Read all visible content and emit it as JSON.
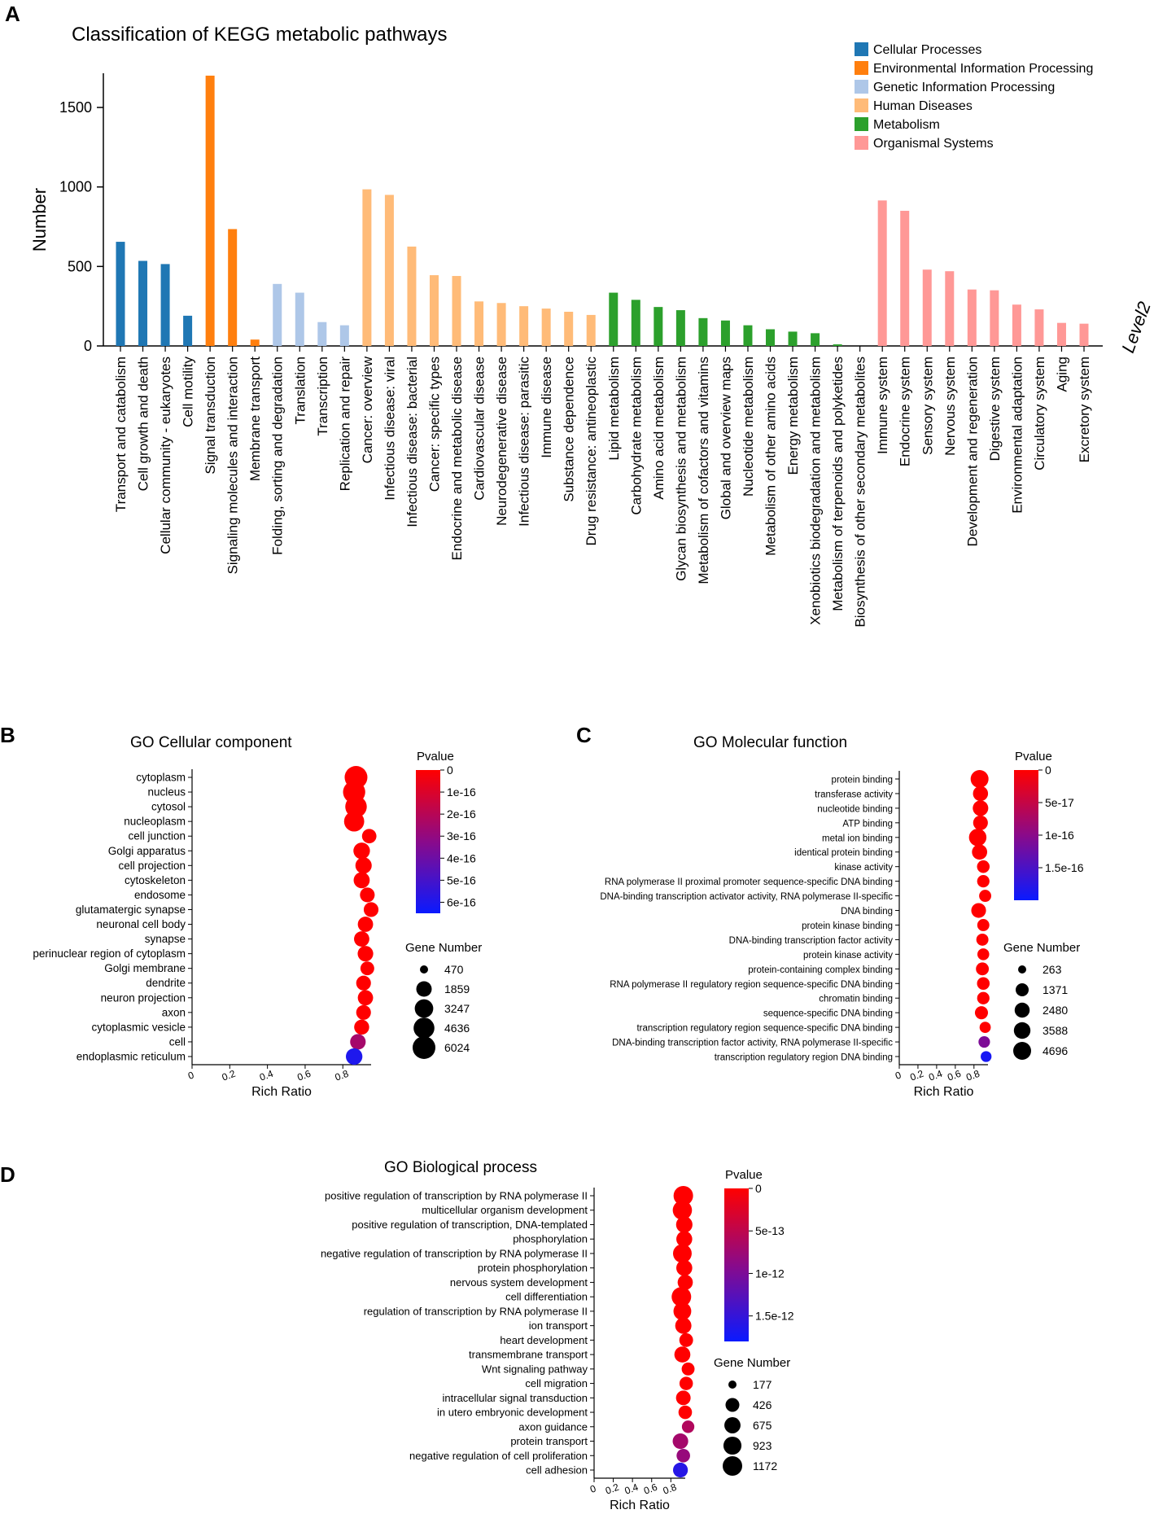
{
  "chart_data": [
    {
      "panel": "A",
      "type": "bar",
      "title": "Classification of KEGG metabolic pathways",
      "xlabel": "Level2",
      "ylabel": "Number",
      "ylim": [
        0,
        1750
      ],
      "yticks": [
        0,
        500,
        1000,
        1500
      ],
      "groups": [
        {
          "name": "Cellular Processes",
          "color": "#1f77b4"
        },
        {
          "name": "Environmental Information Processing",
          "color": "#ff7f0e"
        },
        {
          "name": "Genetic Information Processing",
          "color": "#aec7e8"
        },
        {
          "name": "Human Diseases",
          "color": "#ffbb78"
        },
        {
          "name": "Metabolism",
          "color": "#2ca02c"
        },
        {
          "name": "Organismal Systems",
          "color": "#ff9896"
        }
      ],
      "categories": [
        "Transport and catabolism",
        "Cell growth and death",
        "Cellular community - eukaryotes",
        "Cell motility",
        "Signal transduction",
        "Signaling molecules and interaction",
        "Membrane transport",
        "Folding, sorting and degradation",
        "Translation",
        "Transcription",
        "Replication and repair",
        "Cancer: overview",
        "Infectious disease: viral",
        "Infectious disease: bacterial",
        "Cancer: specific types",
        "Endocrine and metabolic disease",
        "Cardiovascular disease",
        "Neurodegenerative disease",
        "Infectious disease: parasitic",
        "Immune disease",
        "Substance dependence",
        "Drug resistance: antineoplastic",
        "Lipid metabolism",
        "Carbohydrate metabolism",
        "Amino acid metabolism",
        "Glycan biosynthesis and metabolism",
        "Metabolism of cofactors and vitamins",
        "Global and overview maps",
        "Nucleotide metabolism",
        "Metabolism of other amino acids",
        "Energy metabolism",
        "Xenobiotics biodegradation and metabolism",
        "Metabolism of terpenoids and polyketides",
        "Biosynthesis of other secondary metabolites",
        "Immune system",
        "Endocrine system",
        "Sensory system",
        "Nervous system",
        "Development and regeneration",
        "Digestive system",
        "Environmental adaptation",
        "Circulatory system",
        "Aging",
        "Excretory system"
      ],
      "group_index": [
        0,
        0,
        0,
        0,
        1,
        1,
        1,
        2,
        2,
        2,
        2,
        3,
        3,
        3,
        3,
        3,
        3,
        3,
        3,
        3,
        3,
        3,
        4,
        4,
        4,
        4,
        4,
        4,
        4,
        4,
        4,
        4,
        4,
        4,
        5,
        5,
        5,
        5,
        5,
        5,
        5,
        5,
        5,
        5
      ],
      "values": [
        655,
        535,
        515,
        190,
        1700,
        735,
        40,
        390,
        335,
        150,
        130,
        985,
        950,
        625,
        445,
        440,
        280,
        270,
        250,
        235,
        215,
        195,
        335,
        290,
        245,
        225,
        175,
        160,
        130,
        105,
        90,
        80,
        10,
        0,
        915,
        850,
        480,
        470,
        355,
        350,
        260,
        230,
        145,
        140
      ]
    },
    {
      "panel": "B",
      "type": "scatter",
      "title": "GO Cellular component",
      "xlabel": "Rich Ratio",
      "xticks": [
        "0",
        "0.2",
        "0.4",
        "0.6",
        "0.8"
      ],
      "xlim": [
        0,
        0.95
      ],
      "color_legend": {
        "title": "Pvalue",
        "ticks": [
          "0",
          "1e-16",
          "2e-16",
          "3e-16",
          "4e-16",
          "5e-16",
          "6e-16"
        ],
        "max": 6.5e-16
      },
      "size_legend": {
        "title": "Gene Number",
        "values": [
          470,
          1859,
          3247,
          4636,
          6024
        ]
      },
      "terms": [
        "cytoplasm",
        "nucleus",
        "cytosol",
        "nucleoplasm",
        "cell junction",
        "Golgi apparatus",
        "cell projection",
        "cytoskeleton",
        "endosome",
        "glutamatergic synapse",
        "neuronal cell body",
        "synapse",
        "perinuclear region of cytoplasm",
        "Golgi membrane",
        "dendrite",
        "neuron projection",
        "axon",
        "cytoplasmic vesicle",
        "cell",
        "endoplasmic reticulum"
      ],
      "rich_ratio": [
        0.87,
        0.86,
        0.87,
        0.86,
        0.94,
        0.9,
        0.91,
        0.9,
        0.93,
        0.95,
        0.92,
        0.9,
        0.92,
        0.93,
        0.91,
        0.92,
        0.91,
        0.9,
        0.88,
        0.86
      ],
      "gene_number": [
        6024,
        5600,
        5100,
        4200,
        1500,
        2300,
        2200,
        2100,
        1600,
        1600,
        1800,
        1800,
        1900,
        1300,
        1600,
        1800,
        1600,
        1700,
        1900,
        2300
      ],
      "pvalue": [
        0,
        0,
        0,
        0,
        0,
        0,
        0,
        0,
        0,
        0,
        0,
        0,
        0,
        0,
        0,
        0,
        0,
        0,
        2.5e-16,
        6e-16
      ]
    },
    {
      "panel": "C",
      "type": "scatter",
      "title": "GO Molecular function",
      "xlabel": "Rich Ratio",
      "xticks": [
        "0",
        "0.2",
        "0.4",
        "0.6",
        "0.8"
      ],
      "xlim": [
        0,
        0.95
      ],
      "color_legend": {
        "title": "Pvalue",
        "ticks": [
          "5e-17",
          "1e-16",
          "1.5e-16"
        ],
        "tick_values": [
          5e-17,
          1e-16,
          1.5e-16
        ],
        "top_label": "0",
        "max": 2e-16
      },
      "size_legend": {
        "title": "Gene Number",
        "values": [
          263,
          1371,
          2480,
          3588,
          4696
        ]
      },
      "terms": [
        "protein binding",
        "transferase activity",
        "nucleotide binding",
        "ATP binding",
        "metal ion binding",
        "identical protein binding",
        "kinase activity",
        "RNA polymerase II proximal promoter sequence-specific DNA binding",
        "DNA-binding transcription activator activity, RNA polymerase II-specific",
        "DNA binding",
        "protein kinase binding",
        "DNA-binding transcription factor activity",
        "protein kinase activity",
        "protein-containing complex binding",
        "RNA polymerase II regulatory region sequence-specific DNA binding",
        "chromatin binding",
        "sequence-specific DNA binding",
        "transcription regulatory region sequence-specific DNA binding",
        "DNA-binding transcription factor activity, RNA polymerase II-specific",
        "transcription regulatory region DNA binding"
      ],
      "rich_ratio": [
        0.86,
        0.87,
        0.87,
        0.87,
        0.84,
        0.86,
        0.9,
        0.9,
        0.92,
        0.85,
        0.9,
        0.89,
        0.9,
        0.89,
        0.9,
        0.9,
        0.88,
        0.92,
        0.91,
        0.93
      ],
      "gene_number": [
        4696,
        2500,
        2800,
        2300,
        4300,
        2600,
        1200,
        1100,
        1000,
        2300,
        1000,
        1000,
        900,
        1300,
        1200,
        1100,
        1400,
        700,
        800,
        600
      ],
      "pvalue": [
        0,
        0,
        0,
        0,
        0,
        0,
        0,
        0,
        0,
        0,
        0,
        0,
        0,
        0,
        0,
        0,
        0,
        0,
        1.1e-16,
        1.9e-16
      ]
    },
    {
      "panel": "D",
      "type": "scatter",
      "title": "GO Biological process",
      "xlabel": "Rich Ratio",
      "xticks": [
        "0",
        "0.2",
        "0.4",
        "0.6",
        "0.8"
      ],
      "xlim": [
        0,
        0.95
      ],
      "color_legend": {
        "title": "Pvalue",
        "ticks": [
          "5e-13",
          "1e-12",
          "1.5e-12"
        ],
        "tick_values": [
          5e-13,
          1e-12,
          1.5e-12
        ],
        "top_label": "0",
        "max": 1.8e-12
      },
      "size_legend": {
        "title": "Gene Number",
        "values": [
          177,
          426,
          675,
          923,
          1172
        ]
      },
      "terms": [
        "positive regulation of transcription by RNA polymerase II",
        "multicellular organism development",
        "positive regulation of transcription, DNA-templated",
        "phosphorylation",
        "negative regulation of transcription by RNA polymerase II",
        "protein phosphorylation",
        "nervous system development",
        "cell differentiation",
        "regulation of transcription by RNA polymerase II",
        "ion transport",
        "heart development",
        "transmembrane transport",
        "Wnt signaling pathway",
        "cell migration",
        "intracellular signal transduction",
        "in utero embryonic development",
        "axon guidance",
        "protein transport",
        "negative regulation of cell proliferation",
        "cell adhesion"
      ],
      "rich_ratio": [
        0.93,
        0.92,
        0.94,
        0.94,
        0.92,
        0.94,
        0.95,
        0.91,
        0.92,
        0.93,
        0.96,
        0.92,
        0.98,
        0.96,
        0.93,
        0.95,
        0.98,
        0.9,
        0.93,
        0.9
      ],
      "gene_number": [
        1172,
        1120,
        700,
        640,
        1030,
        650,
        560,
        1172,
        890,
        680,
        420,
        650,
        350,
        390,
        500,
        400,
        320,
        600,
        400,
        520
      ],
      "pvalue": [
        0,
        0,
        0,
        0,
        0,
        0,
        0,
        0,
        0,
        0,
        0,
        0,
        0,
        0,
        0,
        0,
        6e-13,
        7e-13,
        8e-13,
        1.6e-12
      ]
    }
  ],
  "panels": {
    "a": "A",
    "b": "B",
    "c": "C",
    "d": "D"
  }
}
